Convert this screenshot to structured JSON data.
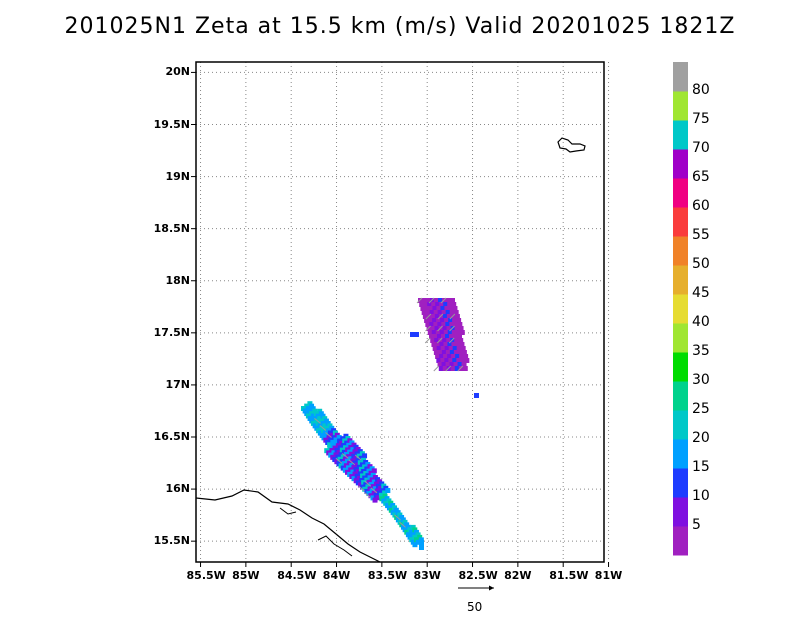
{
  "title": "201025N1  Zeta at 15.5 km (m/s) Valid 20201025  1821Z",
  "lat_labels": [
    "20N",
    "19.5N",
    "19N",
    "18.5N",
    "18N",
    "17.5N",
    "17N",
    "16.5N",
    "16N",
    "15.5N"
  ],
  "lon_labels": [
    "85.5W",
    "85W",
    "84.5W",
    "84W",
    "83.5W",
    "83W",
    "82.5W",
    "82W",
    "81.5W",
    "81W"
  ],
  "map_extent": {
    "lon": [
      -85.55,
      -81.05
    ],
    "lat": [
      15.3,
      20.1
    ]
  },
  "colorbar": {
    "labels": [
      "5",
      "10",
      "15",
      "20",
      "25",
      "30",
      "35",
      "40",
      "45",
      "50",
      "55",
      "60",
      "65",
      "70",
      "75",
      "80"
    ],
    "colors": [
      "#a020c0",
      "#7f10e0",
      "#1e3cff",
      "#00a0ff",
      "#00c8c8",
      "#00d28c",
      "#00dc00",
      "#a0e632",
      "#e6dc32",
      "#e6af2d",
      "#f08228",
      "#fa3c3c",
      "#f00082",
      "#a000c8",
      "#00c8c8",
      "#a0e632",
      "#a0a0a0"
    ]
  },
  "reference_vector": {
    "label": "50"
  }
}
